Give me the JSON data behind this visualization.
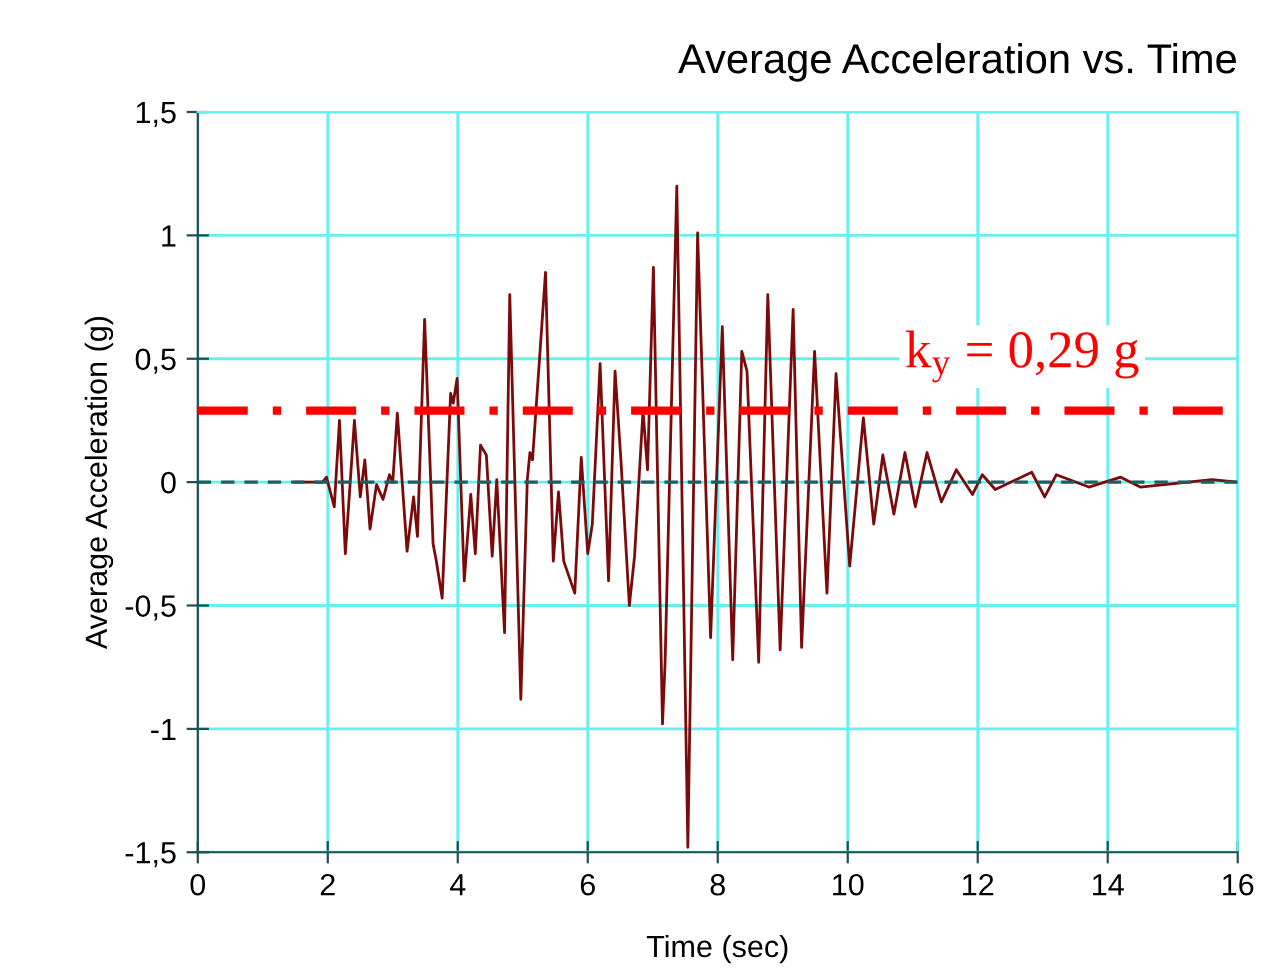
{
  "chart_data": {
    "type": "line",
    "title": "Average Acceleration vs. Time",
    "xlabel": "Time (sec)",
    "ylabel": "Average Acceleration (g)",
    "xlim": [
      0,
      16
    ],
    "xticks": [
      0,
      2,
      4,
      6,
      8,
      10,
      12,
      14,
      16
    ],
    "ylim": [
      -1.5,
      1.5
    ],
    "yticks": [
      {
        "value": -1.5,
        "label": "-1,5"
      },
      {
        "value": -1,
        "label": "-1"
      },
      {
        "value": -0.5,
        "label": "-0,5"
      },
      {
        "value": 0,
        "label": "0"
      },
      {
        "value": 0.5,
        "label": "0,5"
      },
      {
        "value": 1,
        "label": "1"
      },
      {
        "value": 1.5,
        "label": "1,5"
      }
    ],
    "grid": true,
    "legend": false,
    "marker": "none",
    "ref_lines": [
      {
        "axis": "y",
        "value": 0,
        "color": "#1f5f5f",
        "line_style": "dashed"
      },
      {
        "axis": "y",
        "value": 0.29,
        "label": "k$_{y}$ = 0,29 g",
        "color": "#ff0000",
        "line_style": "dashdot"
      }
    ],
    "series": [
      {
        "color": "#7b0a0a",
        "x": [
          1.5,
          1.92,
          1.98,
          2.1,
          2.18,
          2.27,
          2.41,
          2.5,
          2.57,
          2.65,
          2.75,
          2.85,
          2.95,
          3.0,
          3.07,
          3.22,
          3.32,
          3.38,
          3.49,
          3.62,
          3.67,
          3.76,
          3.89,
          3.93,
          3.99,
          4.1,
          4.2,
          4.27,
          4.35,
          4.44,
          4.53,
          4.6,
          4.72,
          4.8,
          4.97,
          5.07,
          5.11,
          5.15,
          5.35,
          5.47,
          5.55,
          5.63,
          5.8,
          5.9,
          6.0,
          6.07,
          6.19,
          6.32,
          6.42,
          6.51,
          6.64,
          6.72,
          6.85,
          6.92,
          7.01,
          7.15,
          7.19,
          7.37,
          7.54,
          7.69,
          7.89,
          8.07,
          8.23,
          8.37,
          8.45,
          8.63,
          8.77,
          8.96,
          9.16,
          9.29,
          9.49,
          9.68,
          9.82,
          10.03,
          10.24,
          10.4,
          10.54,
          10.71,
          10.88,
          11.04,
          11.22,
          11.44,
          11.67,
          11.92,
          12.07,
          12.27,
          12.83,
          13.03,
          13.21,
          13.71,
          14.2,
          14.5,
          15.6,
          16.0
        ],
        "values": [
          0,
          0,
          0.02,
          -0.1,
          0.25,
          -0.29,
          0.25,
          -0.06,
          0.09,
          -0.19,
          -0.01,
          -0.07,
          0.03,
          0,
          0.28,
          -0.28,
          -0.06,
          -0.22,
          0.66,
          -0.25,
          -0.32,
          -0.47,
          0.36,
          0.32,
          0.42,
          -0.4,
          -0.05,
          -0.29,
          0.15,
          0.11,
          -0.3,
          0.01,
          -0.61,
          0.76,
          -0.88,
          0.01,
          0.12,
          0.09,
          0.85,
          -0.32,
          -0.04,
          -0.32,
          -0.45,
          0.1,
          -0.29,
          -0.17,
          0.48,
          -0.4,
          0.45,
          0.09,
          -0.5,
          -0.3,
          0.29,
          0.05,
          0.87,
          -0.98,
          -0.73,
          1.2,
          -1.48,
          1.01,
          -0.63,
          0.63,
          -0.72,
          0.53,
          0.45,
          -0.73,
          0.76,
          -0.68,
          0.7,
          -0.67,
          0.53,
          -0.45,
          0.44,
          -0.34,
          0.26,
          -0.17,
          0.11,
          -0.13,
          0.12,
          -0.1,
          0.12,
          -0.08,
          0.05,
          -0.05,
          0.03,
          -0.03,
          0.04,
          -0.06,
          0.03,
          -0.02,
          0.02,
          -0.02,
          0.01,
          0
        ]
      }
    ]
  }
}
